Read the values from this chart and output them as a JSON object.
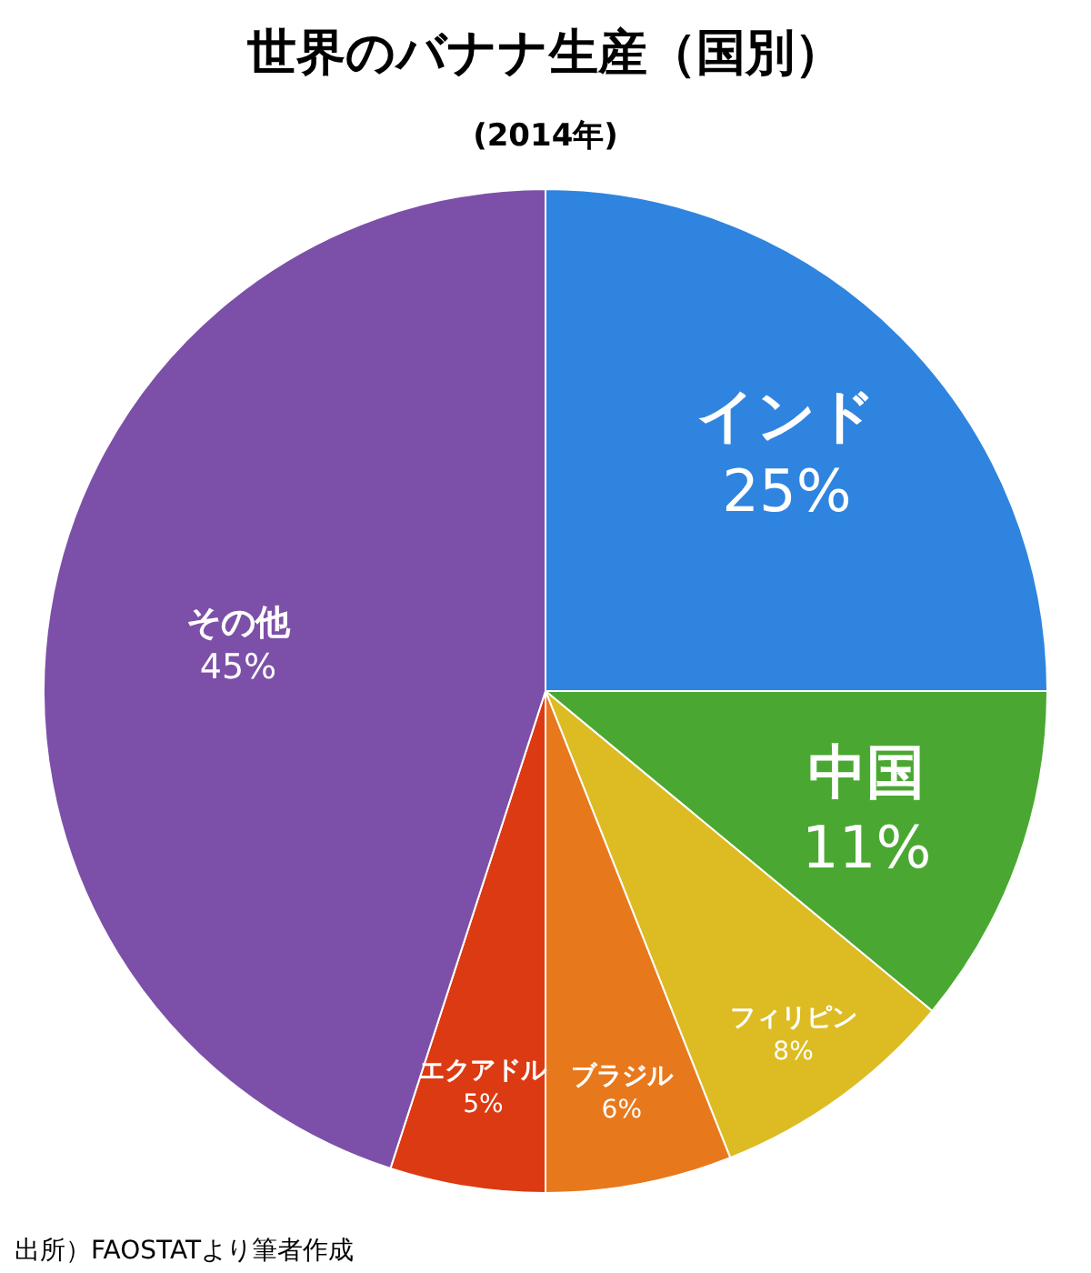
{
  "chart_data": {
    "type": "pie",
    "title": "世界のバナナ生産（国別）",
    "subtitle": "(2014年)",
    "categories": [
      "インド",
      "中国",
      "フィリピン",
      "ブラジル",
      "エクアドル",
      "その他"
    ],
    "values": [
      25,
      11,
      8,
      6,
      5,
      45
    ],
    "value_labels": [
      "25%",
      "11%",
      "8%",
      "6%",
      "5%",
      "45%"
    ],
    "colors": [
      "#2f84e0",
      "#4aa832",
      "#dcbc22",
      "#e8781c",
      "#dc3a12",
      "#7c50a8"
    ],
    "annotations": [
      "出所）FAOSTATより筆者作成"
    ]
  }
}
